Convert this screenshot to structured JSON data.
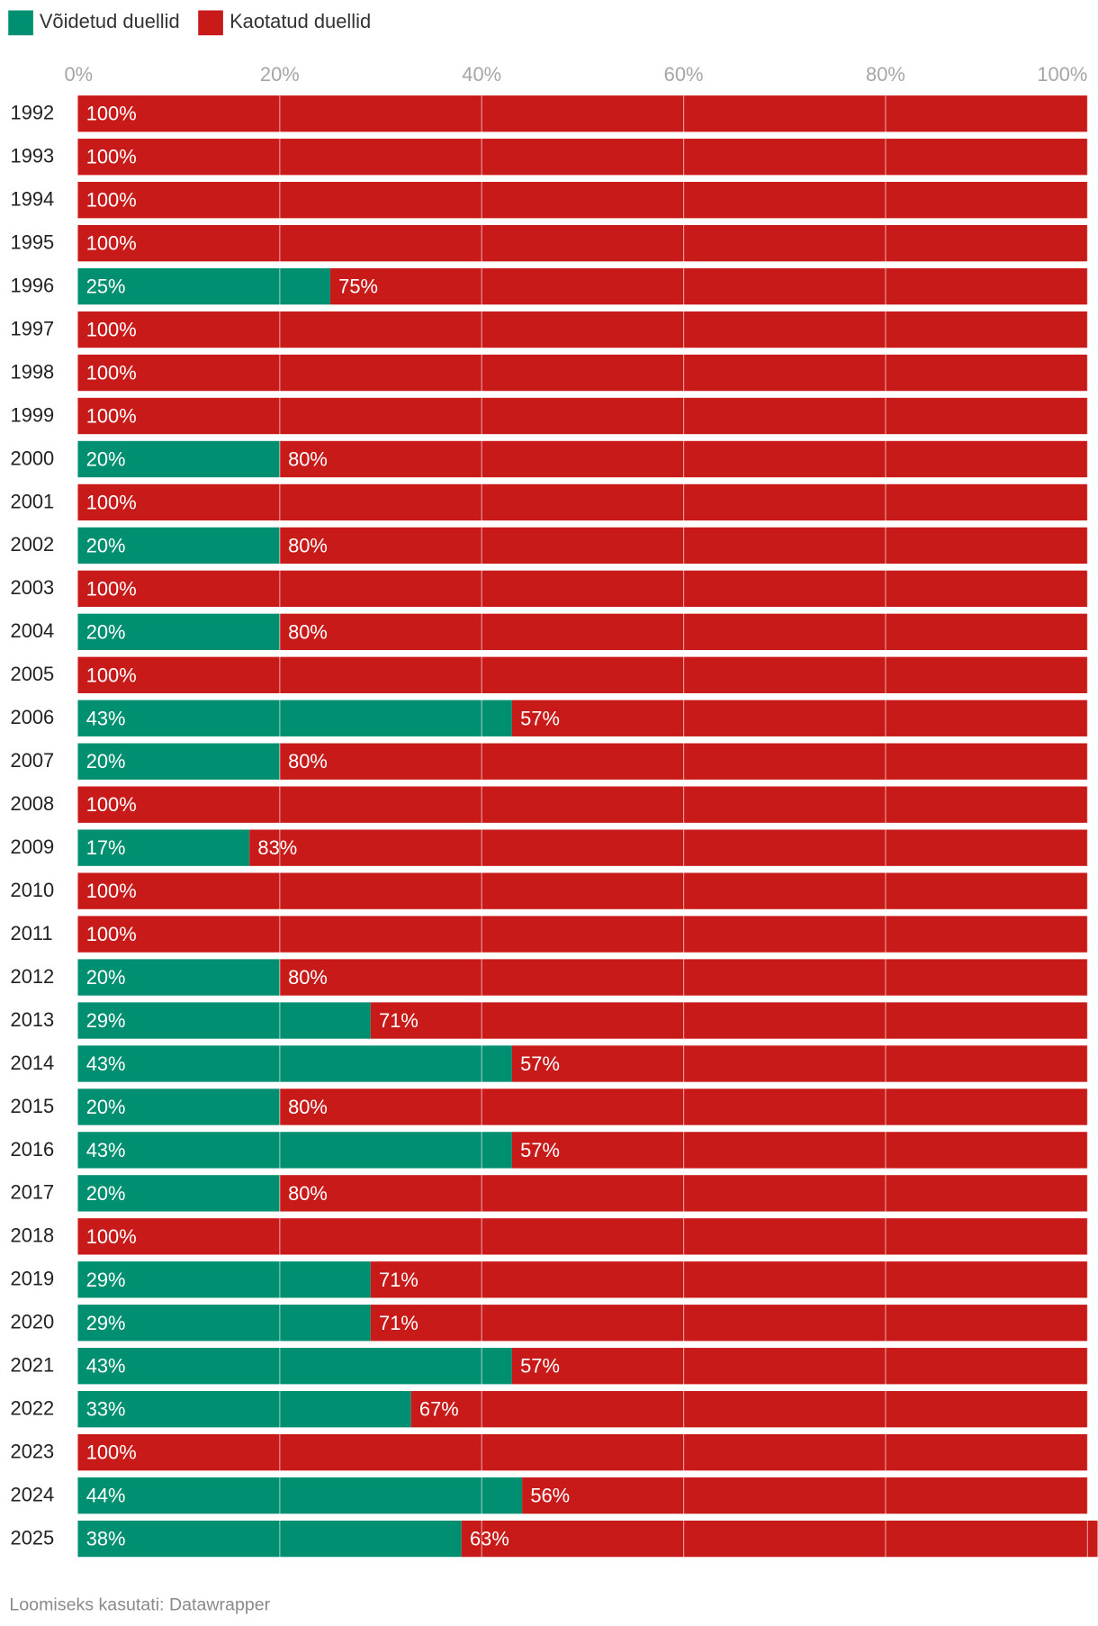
{
  "legend": [
    {
      "label": "Võidetud duellid",
      "color": "#008f70"
    },
    {
      "label": "Kaotatud duellid",
      "color": "#c91a1a"
    }
  ],
  "footer": "Loomiseks kasutati: Datawrapper",
  "chart_data": {
    "type": "bar",
    "orientation": "horizontal",
    "stacked": true,
    "xlim": [
      0,
      100
    ],
    "xticks": [
      "0%",
      "20%",
      "40%",
      "60%",
      "80%",
      "100%"
    ],
    "grid": true,
    "legend_position": "top-left",
    "categories": [
      "1992",
      "1993",
      "1994",
      "1995",
      "1996",
      "1997",
      "1998",
      "1999",
      "2000",
      "2001",
      "2002",
      "2003",
      "2004",
      "2005",
      "2006",
      "2007",
      "2008",
      "2009",
      "2010",
      "2011",
      "2012",
      "2013",
      "2014",
      "2015",
      "2016",
      "2017",
      "2018",
      "2019",
      "2020",
      "2021",
      "2022",
      "2023",
      "2024",
      "2025"
    ],
    "series": [
      {
        "name": "Võidetud duellid",
        "color": "#008f70",
        "values": [
          0,
          0,
          0,
          0,
          25,
          0,
          0,
          0,
          20,
          0,
          20,
          0,
          20,
          0,
          43,
          20,
          0,
          17,
          0,
          0,
          20,
          29,
          43,
          20,
          43,
          20,
          0,
          29,
          29,
          43,
          33,
          0,
          44,
          38
        ],
        "labels": [
          "",
          "",
          "",
          "",
          "25%",
          "",
          "",
          "",
          "20%",
          "",
          "20%",
          "",
          "20%",
          "",
          "43%",
          "20%",
          "",
          "17%",
          "",
          "",
          "20%",
          "29%",
          "43%",
          "20%",
          "43%",
          "20%",
          "",
          "29%",
          "29%",
          "43%",
          "33%",
          "",
          "44%",
          "38%"
        ]
      },
      {
        "name": "Kaotatud duellid",
        "color": "#c91a1a",
        "values": [
          100,
          100,
          100,
          100,
          75,
          100,
          100,
          100,
          80,
          100,
          80,
          100,
          80,
          100,
          57,
          80,
          100,
          83,
          100,
          100,
          80,
          71,
          57,
          80,
          57,
          80,
          100,
          71,
          71,
          57,
          67,
          100,
          56,
          63
        ],
        "labels": [
          "100%",
          "100%",
          "100%",
          "100%",
          "75%",
          "100%",
          "100%",
          "100%",
          "80%",
          "100%",
          "80%",
          "100%",
          "80%",
          "100%",
          "57%",
          "80%",
          "100%",
          "83%",
          "100%",
          "100%",
          "80%",
          "71%",
          "57%",
          "80%",
          "57%",
          "80%",
          "100%",
          "71%",
          "71%",
          "57%",
          "67%",
          "100%",
          "56%",
          "63%"
        ]
      }
    ]
  }
}
